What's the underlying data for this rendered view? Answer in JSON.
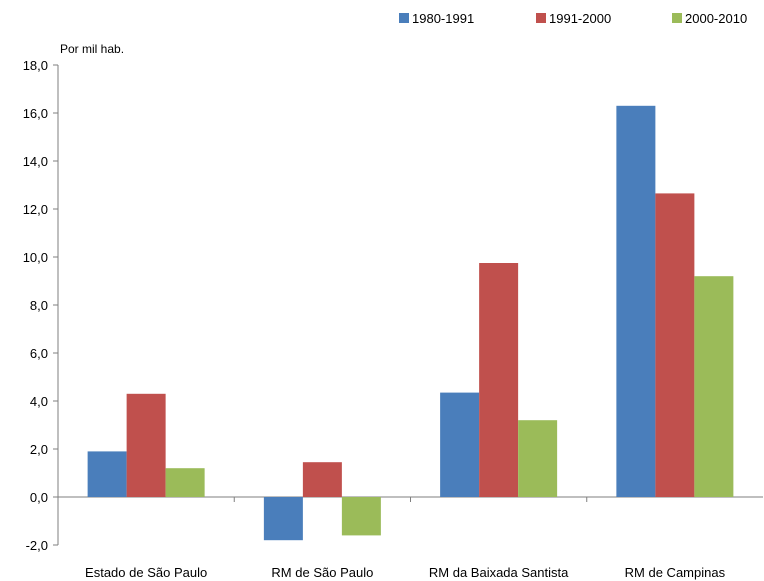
{
  "chart_data": {
    "type": "bar",
    "y_unit_label": "Por mil hab.",
    "categories": [
      "Estado de São Paulo",
      "RM de São Paulo",
      "RM da Baixada Santista",
      "RM de Campinas"
    ],
    "series": [
      {
        "name": "1980-1991",
        "color": "#4a7ebb",
        "values": [
          1.9,
          -1.8,
          4.35,
          16.3
        ]
      },
      {
        "name": "1991-2000",
        "color": "#c0504d",
        "values": [
          4.3,
          1.45,
          9.75,
          12.65
        ]
      },
      {
        "name": "2000-2010",
        "color": "#9bbb59",
        "values": [
          1.2,
          -1.6,
          3.2,
          9.2
        ]
      }
    ],
    "ylim": [
      -2,
      18
    ],
    "yticks": [
      -2,
      0,
      2,
      4,
      6,
      8,
      10,
      12,
      14,
      16,
      18
    ],
    "ytick_labels": [
      "-2,0",
      "0,0",
      "2,0",
      "4,0",
      "6,0",
      "8,0",
      "10,0",
      "12,0",
      "14,0",
      "16,0",
      "18,0"
    ],
    "legend_position": "top-right",
    "grid": false
  }
}
